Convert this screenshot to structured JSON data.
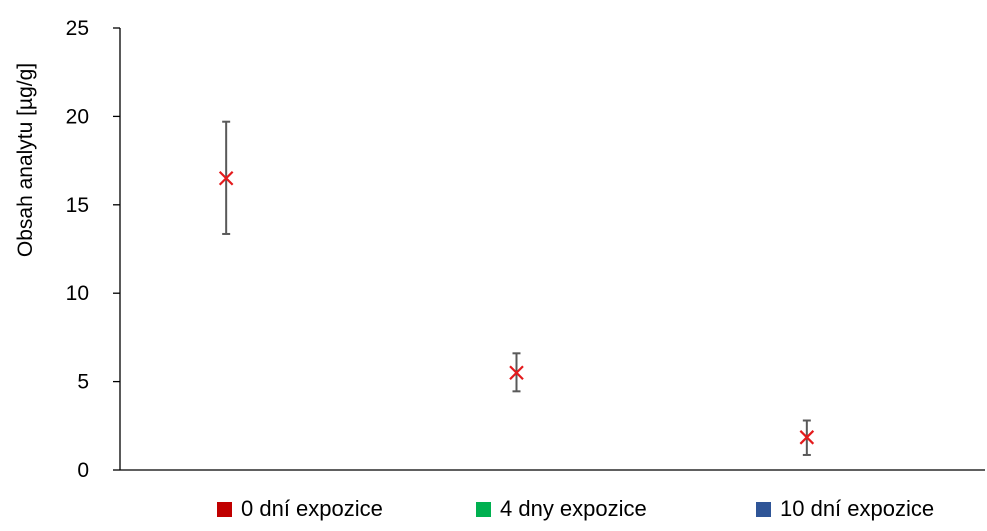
{
  "chart_data": {
    "type": "scatter",
    "title": "",
    "xlabel": "",
    "ylabel": "Obsah analytu [µg/g]",
    "ylim": [
      0,
      25
    ],
    "yticks": [
      0,
      5,
      10,
      15,
      20,
      25
    ],
    "grid": false,
    "legend_position": "bottom",
    "marker": "x",
    "marker_color": "#e41a1c",
    "errorbar_color": "#595959",
    "points": [
      {
        "label": "0 dní expozice",
        "y": 16.5,
        "error_low": 13.35,
        "error_high": 19.7
      },
      {
        "label": "4 dny expozice",
        "y": 5.5,
        "error_low": 4.45,
        "error_high": 6.6
      },
      {
        "label": "10 dní expozice",
        "y": 1.85,
        "error_low": 0.85,
        "error_high": 2.8
      }
    ],
    "legend": [
      {
        "label": "0 dní expozice",
        "color": "#c00000"
      },
      {
        "label": "4 dny expozice",
        "color": "#00b050"
      },
      {
        "label": "10 dní expozice",
        "color": "#2f5597"
      }
    ]
  }
}
